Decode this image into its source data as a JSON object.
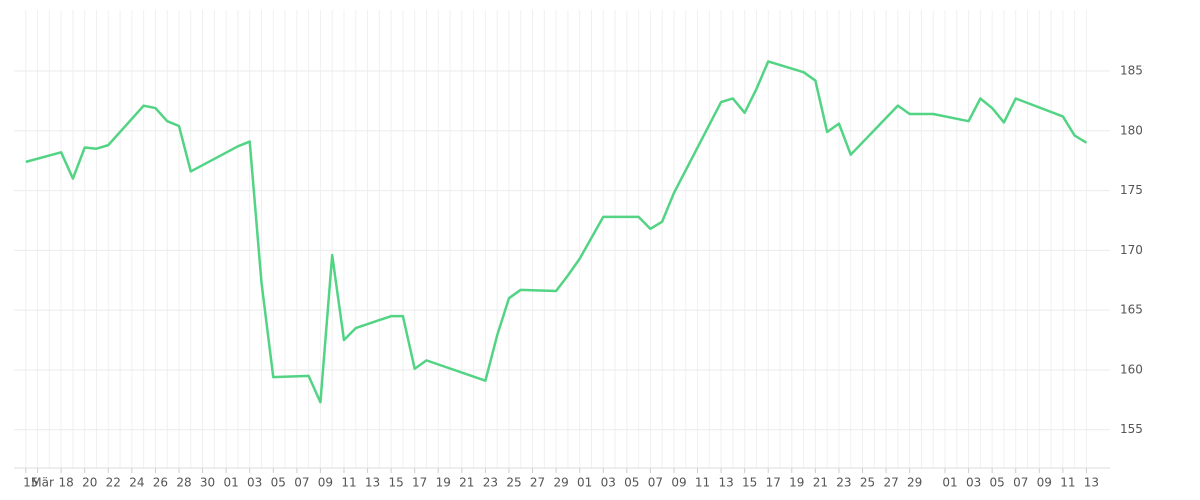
{
  "chart_data": {
    "type": "line",
    "x": [
      0,
      3,
      4,
      5,
      6,
      7,
      10,
      11,
      12,
      13,
      14,
      18,
      19,
      20,
      21,
      24,
      25,
      26,
      27,
      28,
      31,
      32,
      33,
      34,
      39,
      40,
      41,
      42,
      45,
      46,
      47,
      49,
      52,
      53,
      54,
      55,
      59,
      60,
      61,
      62,
      63,
      66,
      67,
      68,
      69,
      70,
      74,
      75,
      77,
      80,
      81,
      82,
      83,
      84,
      88,
      89,
      90
    ],
    "series": [
      {
        "color": "#52d484",
        "values": [
          177.4,
          178.2,
          176.0,
          178.6,
          178.5,
          178.8,
          182.1,
          181.9,
          180.8,
          180.4,
          176.6,
          178.7,
          179.1,
          167.3,
          159.4,
          159.5,
          157.3,
          169.6,
          162.5,
          163.5,
          164.5,
          164.5,
          160.1,
          160.8,
          159.1,
          162.9,
          166.0,
          166.7,
          166.6,
          167.9,
          169.3,
          172.8,
          172.8,
          171.8,
          172.4,
          174.8,
          182.4,
          182.7,
          181.5,
          183.5,
          185.8,
          184.9,
          184.2,
          179.9,
          180.6,
          178.0,
          182.1,
          181.4,
          181.4,
          180.8,
          182.7,
          181.9,
          180.7,
          182.7,
          181.2,
          179.6,
          179.0
        ]
      }
    ],
    "xlim": [
      -1,
      92
    ],
    "xticks": [
      {
        "value": 0,
        "label": "15"
      },
      {
        "value": 1,
        "label": "Mär"
      },
      {
        "value": 2,
        "label": null
      },
      {
        "value": 3,
        "label": "18"
      },
      {
        "value": 4,
        "label": null
      },
      {
        "value": 5,
        "label": "20"
      },
      {
        "value": 6,
        "label": null
      },
      {
        "value": 7,
        "label": "22"
      },
      {
        "value": 8,
        "label": null
      },
      {
        "value": 9,
        "label": "24"
      },
      {
        "value": 10,
        "label": null
      },
      {
        "value": 11,
        "label": "26"
      },
      {
        "value": 12,
        "label": null
      },
      {
        "value": 13,
        "label": "28"
      },
      {
        "value": 14,
        "label": null
      },
      {
        "value": 15,
        "label": "30"
      },
      {
        "value": 16,
        "label": null
      },
      {
        "value": 17,
        "label": "01"
      },
      {
        "value": 18,
        "label": null
      },
      {
        "value": 19,
        "label": "03"
      },
      {
        "value": 20,
        "label": null
      },
      {
        "value": 21,
        "label": "05"
      },
      {
        "value": 22,
        "label": null
      },
      {
        "value": 23,
        "label": "07"
      },
      {
        "value": 24,
        "label": null
      },
      {
        "value": 25,
        "label": "09"
      },
      {
        "value": 26,
        "label": null
      },
      {
        "value": 27,
        "label": "11"
      },
      {
        "value": 28,
        "label": null
      },
      {
        "value": 29,
        "label": "13"
      },
      {
        "value": 30,
        "label": null
      },
      {
        "value": 31,
        "label": "15"
      },
      {
        "value": 32,
        "label": null
      },
      {
        "value": 33,
        "label": "17"
      },
      {
        "value": 34,
        "label": null
      },
      {
        "value": 35,
        "label": "19"
      },
      {
        "value": 36,
        "label": null
      },
      {
        "value": 37,
        "label": "21"
      },
      {
        "value": 38,
        "label": null
      },
      {
        "value": 39,
        "label": "23"
      },
      {
        "value": 40,
        "label": null
      },
      {
        "value": 41,
        "label": "25"
      },
      {
        "value": 42,
        "label": null
      },
      {
        "value": 43,
        "label": "27"
      },
      {
        "value": 44,
        "label": null
      },
      {
        "value": 45,
        "label": "29"
      },
      {
        "value": 46,
        "label": null
      },
      {
        "value": 47,
        "label": "01"
      },
      {
        "value": 48,
        "label": null
      },
      {
        "value": 49,
        "label": "03"
      },
      {
        "value": 50,
        "label": null
      },
      {
        "value": 51,
        "label": "05"
      },
      {
        "value": 52,
        "label": null
      },
      {
        "value": 53,
        "label": "07"
      },
      {
        "value": 54,
        "label": null
      },
      {
        "value": 55,
        "label": "09"
      },
      {
        "value": 56,
        "label": null
      },
      {
        "value": 57,
        "label": "11"
      },
      {
        "value": 58,
        "label": null
      },
      {
        "value": 59,
        "label": "13"
      },
      {
        "value": 60,
        "label": null
      },
      {
        "value": 61,
        "label": "15"
      },
      {
        "value": 62,
        "label": null
      },
      {
        "value": 63,
        "label": "17"
      },
      {
        "value": 64,
        "label": null
      },
      {
        "value": 65,
        "label": "19"
      },
      {
        "value": 66,
        "label": null
      },
      {
        "value": 67,
        "label": "21"
      },
      {
        "value": 68,
        "label": null
      },
      {
        "value": 69,
        "label": "23"
      },
      {
        "value": 70,
        "label": null
      },
      {
        "value": 71,
        "label": "25"
      },
      {
        "value": 72,
        "label": null
      },
      {
        "value": 73,
        "label": "27"
      },
      {
        "value": 74,
        "label": null
      },
      {
        "value": 75,
        "label": "29"
      },
      {
        "value": 76,
        "label": null
      },
      {
        "value": 77,
        "label": null
      },
      {
        "value": 78,
        "label": "01"
      },
      {
        "value": 79,
        "label": null
      },
      {
        "value": 80,
        "label": "03"
      },
      {
        "value": 81,
        "label": null
      },
      {
        "value": 82,
        "label": "05"
      },
      {
        "value": 83,
        "label": null
      },
      {
        "value": 84,
        "label": "07"
      },
      {
        "value": 85,
        "label": null
      },
      {
        "value": 86,
        "label": "09"
      },
      {
        "value": 87,
        "label": null
      },
      {
        "value": 88,
        "label": "11"
      },
      {
        "value": 89,
        "label": null
      },
      {
        "value": 90,
        "label": "13"
      }
    ],
    "ylim": [
      151.8,
      190.1
    ],
    "yticks": [
      155,
      160,
      165,
      170,
      175,
      180,
      185
    ],
    "grid": true
  }
}
